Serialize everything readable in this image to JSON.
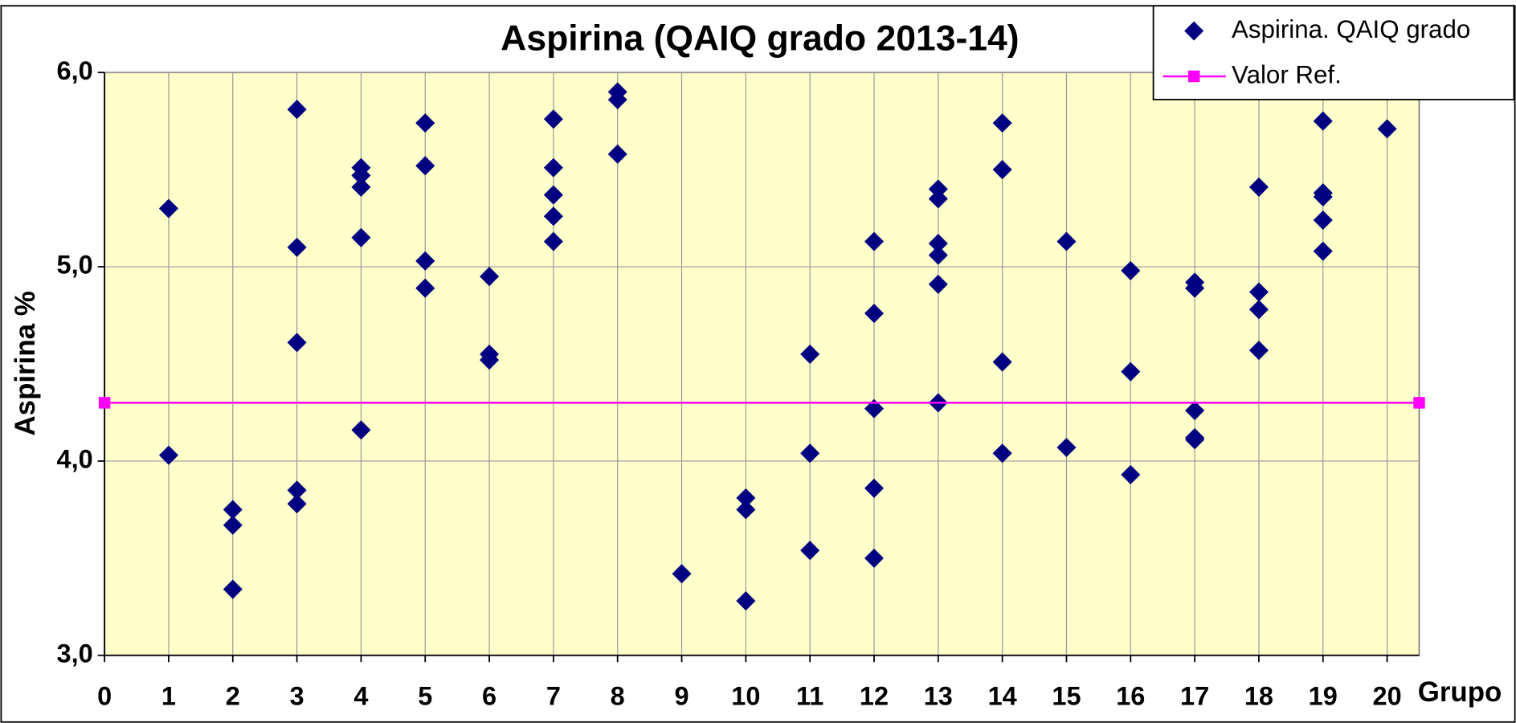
{
  "chart_data": {
    "type": "scatter",
    "title": "Aspirina (QAIQ grado 2013-14)",
    "xlabel": "Grupo",
    "ylabel": "Aspirina %",
    "xlim": [
      0,
      20.5
    ],
    "ylim": [
      3,
      6
    ],
    "xticks": [
      0,
      1,
      2,
      3,
      4,
      5,
      6,
      7,
      8,
      9,
      10,
      11,
      12,
      13,
      14,
      15,
      16,
      17,
      18,
      19,
      20
    ],
    "yticks": [
      {
        "value": 3,
        "label": "3,0"
      },
      {
        "value": 4,
        "label": "4,0"
      },
      {
        "value": 5,
        "label": "5,0"
      },
      {
        "value": 6,
        "label": "6,0"
      }
    ],
    "grid": true,
    "legend": "top-right",
    "background": "#ffffcc",
    "series": [
      {
        "name": "Aspirina. QAIQ grado",
        "color": "#000080",
        "marker": "diamond",
        "x": [
          1,
          1,
          2,
          2,
          2,
          3,
          3,
          3,
          3,
          3,
          4,
          4,
          4,
          4,
          4,
          5,
          5,
          5,
          5,
          6,
          6,
          6,
          7,
          7,
          7,
          7,
          7,
          8,
          8,
          8,
          9,
          10,
          10,
          10,
          11,
          11,
          11,
          12,
          12,
          12,
          12,
          12,
          13,
          13,
          13,
          13,
          13,
          13,
          14,
          14,
          14,
          14,
          15,
          15,
          16,
          16,
          16,
          17,
          17,
          17,
          17,
          17,
          18,
          18,
          18,
          18,
          19,
          19,
          19,
          19,
          19,
          20
        ],
        "values": [
          5.3,
          4.03,
          3.75,
          3.67,
          3.34,
          5.81,
          5.1,
          4.61,
          3.85,
          3.78,
          5.51,
          5.47,
          5.41,
          5.15,
          4.16,
          5.74,
          5.52,
          5.03,
          4.89,
          4.95,
          4.55,
          4.52,
          5.76,
          5.51,
          5.37,
          5.26,
          5.13,
          5.9,
          5.86,
          5.58,
          3.42,
          3.81,
          3.75,
          3.28,
          4.55,
          4.04,
          3.54,
          5.13,
          4.76,
          4.27,
          3.86,
          3.5,
          5.4,
          5.35,
          5.12,
          5.06,
          4.91,
          4.3,
          5.74,
          5.5,
          4.51,
          4.04,
          5.13,
          4.07,
          4.98,
          4.46,
          3.93,
          4.92,
          4.89,
          4.26,
          4.12,
          4.11,
          5.41,
          4.87,
          4.78,
          4.57,
          5.75,
          5.38,
          5.36,
          5.24,
          5.08,
          5.71
        ]
      },
      {
        "name": "Valor Ref.",
        "color": "#ff00ff",
        "marker": "square",
        "x": [
          0,
          20.5
        ],
        "values": [
          4.3,
          4.3
        ]
      }
    ]
  }
}
